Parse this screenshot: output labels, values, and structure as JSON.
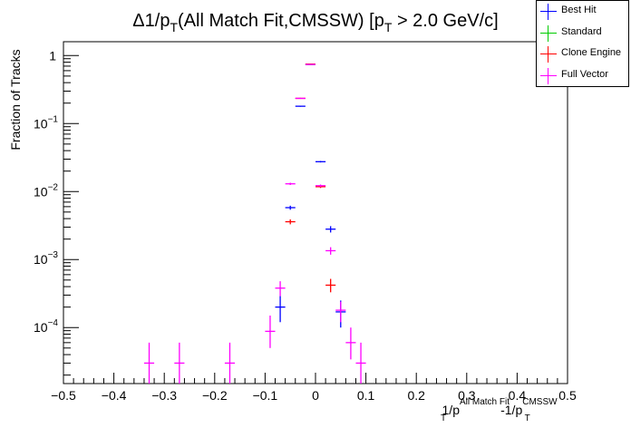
{
  "chart_data": {
    "type": "scatter",
    "title_main": "Δ1/p",
    "title_sub1": "T",
    "title_mid": "(All Match Fit,CMSSW) [p",
    "title_sub2": "T",
    "title_end": " > 2.0 GeV/c]",
    "ylabel": "Fraction of Tracks",
    "xlabel_a": "1/p",
    "xlabel_a_sup": "All Match Fit",
    "xlabel_a_sub": "T",
    "xlabel_b": "-1/p",
    "xlabel_b_sup": "CMSSW",
    "xlabel_b_sub": "T",
    "xlim": [
      -0.5,
      0.5
    ],
    "ylim": [
      1.5e-05,
      1.6
    ],
    "yscale": "log",
    "bin_width": 0.02,
    "x_ticks": [
      {
        "v": -0.5,
        "label": "−0.5"
      },
      {
        "v": -0.4,
        "label": "−0.4"
      },
      {
        "v": -0.3,
        "label": "−0.3"
      },
      {
        "v": -0.2,
        "label": "−0.2"
      },
      {
        "v": -0.1,
        "label": "−0.1"
      },
      {
        "v": 0,
        "label": "0"
      },
      {
        "v": 0.1,
        "label": "0.1"
      },
      {
        "v": 0.2,
        "label": "0.2"
      },
      {
        "v": 0.3,
        "label": "0.3"
      },
      {
        "v": 0.4,
        "label": "0.4"
      },
      {
        "v": 0.5,
        "label": "0.5"
      }
    ],
    "y_ticks": [
      {
        "v": 1,
        "base": "1",
        "exp": ""
      },
      {
        "v": 0.1,
        "base": "10",
        "exp": "−1"
      },
      {
        "v": 0.01,
        "base": "10",
        "exp": "−2"
      },
      {
        "v": 0.001,
        "base": "10",
        "exp": "−3"
      },
      {
        "v": 0.0001,
        "base": "10",
        "exp": "−4"
      }
    ],
    "series": [
      {
        "name": "Best Hit",
        "color": "#0000ff",
        "points": [
          {
            "x": -0.07,
            "y": 0.0002,
            "lo": 0.00012,
            "hi": 0.00029
          },
          {
            "x": -0.05,
            "y": 0.0058,
            "lo": 0.0054,
            "hi": 0.0062
          },
          {
            "x": -0.03,
            "y": 0.18,
            "lo": 0.177,
            "hi": 0.183
          },
          {
            "x": -0.01,
            "y": 0.74,
            "lo": 0.735,
            "hi": 0.745
          },
          {
            "x": 0.01,
            "y": 0.0275,
            "lo": 0.0268,
            "hi": 0.0282
          },
          {
            "x": 0.03,
            "y": 0.0028,
            "lo": 0.0025,
            "hi": 0.0031
          },
          {
            "x": 0.05,
            "y": 0.00017,
            "lo": 0.0001,
            "hi": 0.00025
          }
        ]
      },
      {
        "name": "Standard",
        "color": "#00cc00",
        "points": []
      },
      {
        "name": "Clone Engine",
        "color": "#ff0000",
        "points": [
          {
            "x": -0.05,
            "y": 0.0036,
            "lo": 0.0033,
            "hi": 0.0039
          },
          {
            "x": -0.03,
            "y": 0.235,
            "lo": 0.231,
            "hi": 0.239
          },
          {
            "x": -0.01,
            "y": 0.75,
            "lo": 0.745,
            "hi": 0.755
          },
          {
            "x": 0.01,
            "y": 0.0118,
            "lo": 0.0113,
            "hi": 0.0123
          },
          {
            "x": 0.03,
            "y": 0.00042,
            "lo": 0.00033,
            "hi": 0.00052
          }
        ]
      },
      {
        "name": "Full Vector",
        "color": "#ff00ff",
        "points": [
          {
            "x": -0.33,
            "y": 3e-05,
            "lo": 1.5e-05,
            "hi": 6e-05
          },
          {
            "x": -0.27,
            "y": 3e-05,
            "lo": 1.5e-05,
            "hi": 6e-05
          },
          {
            "x": -0.17,
            "y": 3e-05,
            "lo": 1.5e-05,
            "hi": 6e-05
          },
          {
            "x": -0.09,
            "y": 8.8e-05,
            "lo": 5e-05,
            "hi": 0.00015
          },
          {
            "x": -0.07,
            "y": 0.00038,
            "lo": 0.00029,
            "hi": 0.00048
          },
          {
            "x": -0.05,
            "y": 0.013,
            "lo": 0.0125,
            "hi": 0.0135
          },
          {
            "x": -0.03,
            "y": 0.235,
            "lo": 0.231,
            "hi": 0.239
          },
          {
            "x": -0.01,
            "y": 0.74,
            "lo": 0.735,
            "hi": 0.745
          },
          {
            "x": 0.01,
            "y": 0.0122,
            "lo": 0.0117,
            "hi": 0.0127
          },
          {
            "x": 0.03,
            "y": 0.00135,
            "lo": 0.00118,
            "hi": 0.00152
          },
          {
            "x": 0.05,
            "y": 0.00018,
            "lo": 0.00012,
            "hi": 0.00024
          },
          {
            "x": 0.07,
            "y": 6e-05,
            "lo": 3.4e-05,
            "hi": 0.0001
          },
          {
            "x": 0.09,
            "y": 3e-05,
            "lo": 1.5e-05,
            "hi": 6e-05
          }
        ]
      }
    ],
    "legend_position": "top-right",
    "grid": false
  }
}
